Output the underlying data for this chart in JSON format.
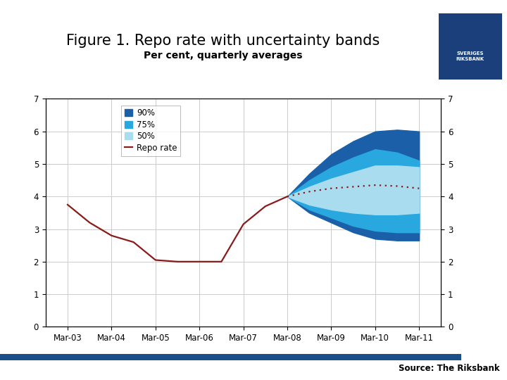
{
  "title": "Figure 1. Repo rate with uncertainty bands",
  "subtitle": "Per cent, quarterly averages",
  "source": "Source: The Riksbank",
  "ylim": [
    0,
    7
  ],
  "yticks": [
    0,
    1,
    2,
    3,
    4,
    5,
    6,
    7
  ],
  "xtick_labels": [
    "Mar-03",
    "Mar-04",
    "Mar-05",
    "Mar-06",
    "Mar-07",
    "Mar-08",
    "Mar-09",
    "Mar-10",
    "Mar-11"
  ],
  "repo_hist_x": [
    0,
    0.5,
    1,
    1.5,
    2,
    2.5,
    3,
    3.5,
    4,
    4.5,
    5
  ],
  "repo_hist_y": [
    3.75,
    3.2,
    2.8,
    2.6,
    2.05,
    2.0,
    2.0,
    2.0,
    3.15,
    3.7,
    4.0
  ],
  "repo_fore_x": [
    5,
    5.5,
    6,
    6.5,
    7,
    7.5,
    8
  ],
  "repo_fore_y": [
    4.0,
    4.15,
    4.25,
    4.3,
    4.35,
    4.32,
    4.25
  ],
  "forecast_x": [
    5,
    5.5,
    6,
    6.5,
    7,
    7.5,
    8
  ],
  "band_90_upper": [
    4.0,
    4.7,
    5.3,
    5.7,
    6.0,
    6.05,
    6.0
  ],
  "band_90_lower": [
    4.0,
    3.5,
    3.2,
    2.9,
    2.7,
    2.65,
    2.65
  ],
  "band_75_upper": [
    4.0,
    4.5,
    4.9,
    5.2,
    5.45,
    5.35,
    5.1
  ],
  "band_75_lower": [
    4.0,
    3.6,
    3.35,
    3.1,
    2.95,
    2.9,
    2.9
  ],
  "band_50_upper": [
    4.0,
    4.3,
    4.55,
    4.75,
    4.95,
    4.95,
    4.9
  ],
  "band_50_lower": [
    4.0,
    3.75,
    3.6,
    3.5,
    3.45,
    3.45,
    3.5
  ],
  "color_90": "#1a5fa8",
  "color_75": "#29a8e0",
  "color_50": "#aadcf0",
  "color_repo": "#8b1a1a",
  "color_bar": "#1a4f8a",
  "background_color": "#ffffff",
  "grid_color": "#cccccc",
  "title_fontsize": 15,
  "subtitle_fontsize": 10
}
